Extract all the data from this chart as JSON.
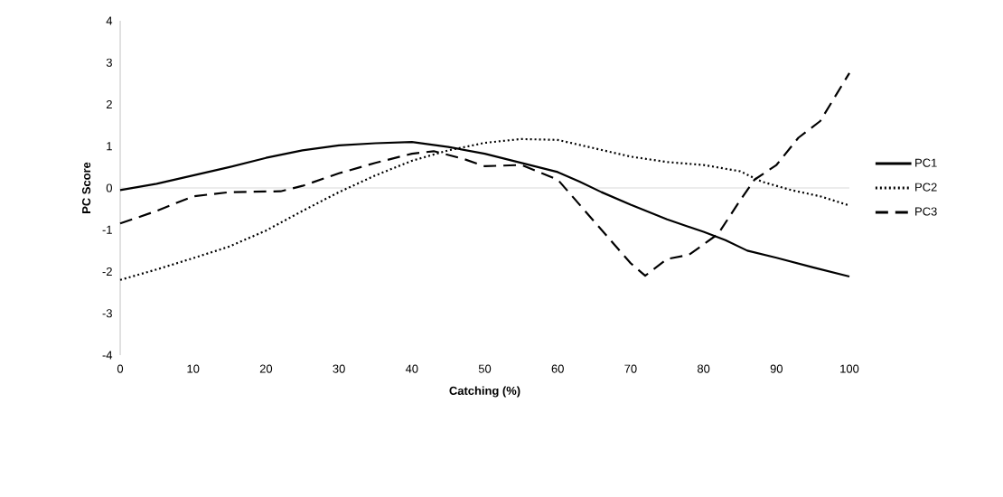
{
  "chart_data": {
    "type": "line",
    "xlabel": "Catching (%)",
    "ylabel": "PC Score",
    "xlim": [
      0,
      100
    ],
    "ylim": [
      -4,
      4
    ],
    "xticks": [
      0,
      10,
      20,
      30,
      40,
      50,
      60,
      70,
      80,
      90,
      100
    ],
    "yticks": [
      -4,
      -3,
      -2,
      -1,
      0,
      1,
      2,
      3,
      4
    ],
    "legend": "right",
    "marker": "none",
    "ref_lines": [
      {
        "axis": "y",
        "value": 0,
        "color": "#d9d9d9"
      }
    ],
    "series": [
      {
        "name": "PC1",
        "color": "#000000",
        "line_style": "solid",
        "x": [
          0,
          5,
          10,
          15,
          20,
          25,
          30,
          35,
          40,
          45,
          50,
          55,
          60,
          63,
          66,
          70,
          75,
          80,
          83,
          86,
          90,
          95,
          100
        ],
        "values": [
          -0.05,
          0.1,
          0.3,
          0.5,
          0.72,
          0.9,
          1.02,
          1.07,
          1.1,
          0.98,
          0.82,
          0.6,
          0.38,
          0.15,
          -0.1,
          -0.4,
          -0.75,
          -1.05,
          -1.25,
          -1.5,
          -1.67,
          -1.9,
          -2.12
        ]
      },
      {
        "name": "PC2",
        "color": "#000000",
        "line_style": "dotted",
        "x": [
          0,
          5,
          10,
          15,
          20,
          25,
          30,
          35,
          40,
          45,
          50,
          55,
          60,
          65,
          70,
          75,
          80,
          85,
          88,
          92,
          96,
          100
        ],
        "values": [
          -2.2,
          -1.95,
          -1.68,
          -1.4,
          -1.02,
          -0.55,
          -0.1,
          0.3,
          0.65,
          0.9,
          1.08,
          1.17,
          1.15,
          0.95,
          0.75,
          0.62,
          0.55,
          0.4,
          0.15,
          -0.05,
          -0.2,
          -0.42
        ]
      },
      {
        "name": "PC3",
        "color": "#000000",
        "line_style": "dashed",
        "x": [
          0,
          5,
          10,
          15,
          22,
          25,
          30,
          35,
          40,
          43,
          47,
          50,
          55,
          60,
          65,
          70,
          72,
          75,
          78,
          82,
          85,
          87,
          90,
          93,
          96,
          100
        ],
        "values": [
          -0.85,
          -0.55,
          -0.2,
          -0.1,
          -0.08,
          0.05,
          0.35,
          0.6,
          0.82,
          0.88,
          0.7,
          0.52,
          0.55,
          0.2,
          -0.8,
          -1.8,
          -2.1,
          -1.7,
          -1.6,
          -1.1,
          -0.3,
          0.2,
          0.55,
          1.2,
          1.6,
          2.75
        ]
      }
    ]
  }
}
